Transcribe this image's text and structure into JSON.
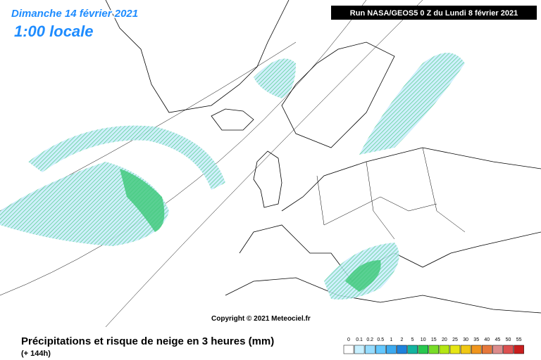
{
  "header": {
    "date": "Dimanche 14 février 2021",
    "time": "1:00 locale",
    "run": "Run NASA/GEOS5 0 Z du Lundi 8 février 2021"
  },
  "copyright": "Copyright © 2021 Meteociel.fr",
  "footer": {
    "title": "Précipitations et risque de neige en 3 heures (mm)",
    "lead": "(+ 144h)"
  },
  "legend": {
    "labels": [
      "0",
      "0.1",
      "0.2",
      "0.5",
      "1",
      "2",
      "5",
      "10",
      "15",
      "20",
      "25",
      "30",
      "35",
      "40",
      "45",
      "50",
      "55"
    ],
    "colors": [
      "#ffffff",
      "#c8f0ff",
      "#96dcff",
      "#64c8ff",
      "#3caaf0",
      "#1e82dc",
      "#14b4a0",
      "#28c850",
      "#78dc28",
      "#b4e614",
      "#e6e614",
      "#f0c814",
      "#f0961e",
      "#e6783c",
      "#dc8c8c",
      "#dc5050",
      "#c81e1e"
    ]
  }
}
